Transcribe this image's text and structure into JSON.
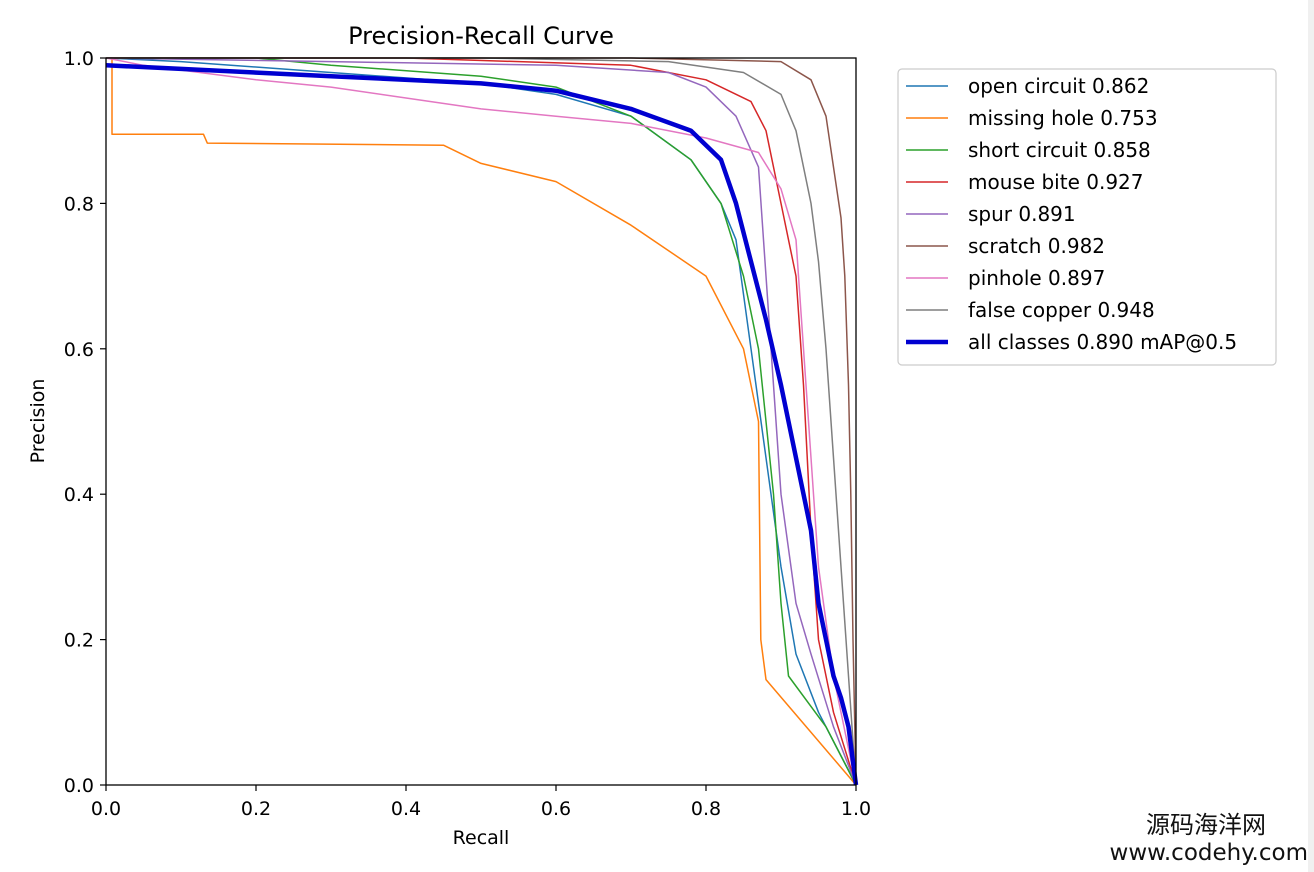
{
  "watermark": {
    "cn": "源码海洋网",
    "url": "www.codehy.com"
  },
  "chart_data": {
    "type": "line",
    "title": "Precision-Recall Curve",
    "xlabel": "Recall",
    "ylabel": "Precision",
    "xlim": [
      0,
      1
    ],
    "ylim": [
      0,
      1
    ],
    "xticks": [
      "0.0",
      "0.2",
      "0.4",
      "0.6",
      "0.8",
      "1.0"
    ],
    "yticks": [
      "0.0",
      "0.2",
      "0.4",
      "0.6",
      "0.8",
      "1.0"
    ],
    "legend_position": "outside-top-right",
    "series": [
      {
        "name": "open circuit 0.862",
        "color": "#1f77b4",
        "width": 1.5,
        "points": [
          [
            0,
            1
          ],
          [
            0.1,
            0.995
          ],
          [
            0.3,
            0.98
          ],
          [
            0.5,
            0.965
          ],
          [
            0.6,
            0.95
          ],
          [
            0.7,
            0.92
          ],
          [
            0.78,
            0.86
          ],
          [
            0.82,
            0.8
          ],
          [
            0.84,
            0.75
          ],
          [
            0.86,
            0.6
          ],
          [
            0.88,
            0.45
          ],
          [
            0.9,
            0.3
          ],
          [
            0.92,
            0.18
          ],
          [
            0.95,
            0.1
          ],
          [
            1,
            0
          ]
        ]
      },
      {
        "name": "missing hole 0.753",
        "color": "#ff7f0e",
        "width": 1.5,
        "points": [
          [
            0,
            1
          ],
          [
            0.008,
            1
          ],
          [
            0.008,
            0.895
          ],
          [
            0.13,
            0.895
          ],
          [
            0.135,
            0.883
          ],
          [
            0.45,
            0.88
          ],
          [
            0.5,
            0.855
          ],
          [
            0.6,
            0.83
          ],
          [
            0.7,
            0.77
          ],
          [
            0.8,
            0.7
          ],
          [
            0.85,
            0.6
          ],
          [
            0.86,
            0.55
          ],
          [
            0.87,
            0.5
          ],
          [
            0.873,
            0.2
          ],
          [
            0.88,
            0.145
          ],
          [
            1,
            0
          ]
        ]
      },
      {
        "name": "short circuit 0.858",
        "color": "#2ca02c",
        "width": 1.5,
        "points": [
          [
            0,
            1
          ],
          [
            0.2,
            1
          ],
          [
            0.3,
            0.99
          ],
          [
            0.5,
            0.975
          ],
          [
            0.6,
            0.96
          ],
          [
            0.7,
            0.92
          ],
          [
            0.78,
            0.86
          ],
          [
            0.82,
            0.8
          ],
          [
            0.85,
            0.7
          ],
          [
            0.87,
            0.6
          ],
          [
            0.89,
            0.4
          ],
          [
            0.9,
            0.25
          ],
          [
            0.91,
            0.15
          ],
          [
            0.96,
            0.08
          ],
          [
            1,
            0
          ]
        ]
      },
      {
        "name": "mouse bite 0.927",
        "color": "#d62728",
        "width": 1.5,
        "points": [
          [
            0,
            1
          ],
          [
            0.4,
            1
          ],
          [
            0.7,
            0.99
          ],
          [
            0.8,
            0.97
          ],
          [
            0.86,
            0.94
          ],
          [
            0.88,
            0.9
          ],
          [
            0.9,
            0.8
          ],
          [
            0.92,
            0.7
          ],
          [
            0.93,
            0.55
          ],
          [
            0.94,
            0.35
          ],
          [
            0.95,
            0.2
          ],
          [
            0.97,
            0.1
          ],
          [
            1,
            0
          ]
        ]
      },
      {
        "name": "spur 0.891",
        "color": "#9467bd",
        "width": 1.5,
        "points": [
          [
            0,
            1
          ],
          [
            0.3,
            0.995
          ],
          [
            0.6,
            0.99
          ],
          [
            0.75,
            0.98
          ],
          [
            0.8,
            0.96
          ],
          [
            0.84,
            0.92
          ],
          [
            0.87,
            0.85
          ],
          [
            0.88,
            0.7
          ],
          [
            0.89,
            0.55
          ],
          [
            0.9,
            0.4
          ],
          [
            0.92,
            0.25
          ],
          [
            0.94,
            0.18
          ],
          [
            0.97,
            0.08
          ],
          [
            1,
            0
          ]
        ]
      },
      {
        "name": "scratch 0.982",
        "color": "#8c564b",
        "width": 1.5,
        "points": [
          [
            0,
            1
          ],
          [
            0.7,
            1
          ],
          [
            0.9,
            0.995
          ],
          [
            0.94,
            0.97
          ],
          [
            0.96,
            0.92
          ],
          [
            0.97,
            0.85
          ],
          [
            0.98,
            0.78
          ],
          [
            0.985,
            0.7
          ],
          [
            0.99,
            0.55
          ],
          [
            0.993,
            0.4
          ],
          [
            0.996,
            0.2
          ],
          [
            1,
            0
          ]
        ]
      },
      {
        "name": "pinhole 0.897",
        "color": "#e377c2",
        "width": 1.5,
        "points": [
          [
            0,
            1
          ],
          [
            0.05,
            0.99
          ],
          [
            0.2,
            0.97
          ],
          [
            0.3,
            0.96
          ],
          [
            0.4,
            0.945
          ],
          [
            0.5,
            0.93
          ],
          [
            0.6,
            0.92
          ],
          [
            0.7,
            0.91
          ],
          [
            0.8,
            0.89
          ],
          [
            0.87,
            0.87
          ],
          [
            0.9,
            0.82
          ],
          [
            0.92,
            0.75
          ],
          [
            0.93,
            0.6
          ],
          [
            0.94,
            0.45
          ],
          [
            0.95,
            0.3
          ],
          [
            0.97,
            0.15
          ],
          [
            1,
            0
          ]
        ]
      },
      {
        "name": "false copper 0.948",
        "color": "#7f7f7f",
        "width": 1.5,
        "points": [
          [
            0,
            1
          ],
          [
            0.5,
            1
          ],
          [
            0.75,
            0.995
          ],
          [
            0.85,
            0.98
          ],
          [
            0.9,
            0.95
          ],
          [
            0.92,
            0.9
          ],
          [
            0.94,
            0.8
          ],
          [
            0.95,
            0.72
          ],
          [
            0.96,
            0.6
          ],
          [
            0.97,
            0.45
          ],
          [
            0.98,
            0.3
          ],
          [
            0.99,
            0.15
          ],
          [
            1,
            0
          ]
        ]
      },
      {
        "name": "all classes 0.890 mAP@0.5",
        "color": "#0000d0",
        "width": 4.5,
        "points": [
          [
            0,
            0.99
          ],
          [
            0.1,
            0.985
          ],
          [
            0.3,
            0.975
          ],
          [
            0.5,
            0.965
          ],
          [
            0.6,
            0.955
          ],
          [
            0.7,
            0.93
          ],
          [
            0.78,
            0.9
          ],
          [
            0.82,
            0.86
          ],
          [
            0.84,
            0.8
          ],
          [
            0.86,
            0.72
          ],
          [
            0.88,
            0.64
          ],
          [
            0.9,
            0.55
          ],
          [
            0.92,
            0.45
          ],
          [
            0.94,
            0.35
          ],
          [
            0.95,
            0.25
          ],
          [
            0.96,
            0.2
          ],
          [
            0.97,
            0.15
          ],
          [
            0.98,
            0.12
          ],
          [
            0.99,
            0.08
          ],
          [
            1,
            0
          ]
        ]
      }
    ]
  }
}
